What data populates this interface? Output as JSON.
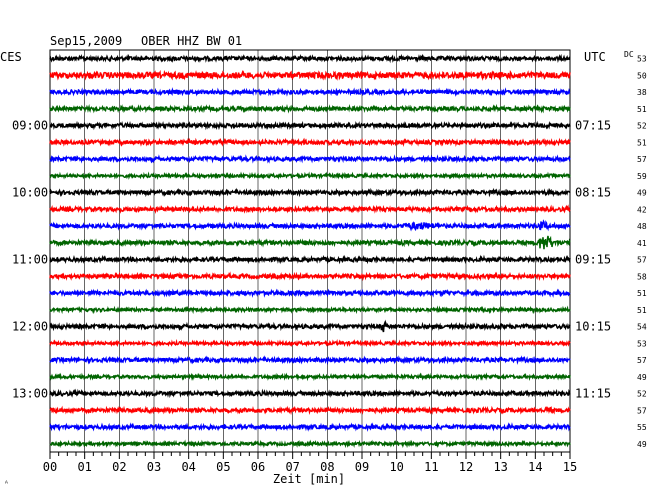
{
  "header": {
    "date": "Sep15,2009",
    "station": "OBER HHZ BW 01",
    "left_zone": "CES",
    "right_zone": "UTC",
    "dc_label": "DC",
    "corner_mark": "ᴬ"
  },
  "chart_data": {
    "type": "line",
    "title": "Sep15,2009 OBER HHZ BW 01",
    "xlabel": "Zeit [min]",
    "ylabel": "",
    "x_range": [
      0,
      15
    ],
    "x_ticks": [
      "00",
      "01",
      "02",
      "03",
      "04",
      "05",
      "06",
      "07",
      "08",
      "09",
      "10",
      "11",
      "12",
      "13",
      "14",
      "15"
    ],
    "grid": true,
    "rows": 24,
    "trace_colors": [
      "#000000",
      "#ff0000",
      "#0000ff",
      "#006400"
    ],
    "time_labels": [
      {
        "row": 0,
        "left": "",
        "right": ""
      },
      {
        "row": 4,
        "left": "09:00",
        "right": "07:15"
      },
      {
        "row": 8,
        "left": "10:00",
        "right": "08:15"
      },
      {
        "row": 12,
        "left": "11:00",
        "right": "09:15"
      },
      {
        "row": 16,
        "left": "12:00",
        "right": "10:15"
      },
      {
        "row": 20,
        "left": "13:00",
        "right": "11:15"
      }
    ],
    "dc_values": [
      "53",
      "50",
      "38",
      "51",
      "52",
      "51",
      "57",
      "59",
      "49",
      "42",
      "48",
      "41",
      "57",
      "58",
      "51",
      "51",
      "54",
      "53",
      "57",
      "49",
      "52",
      "57",
      "55",
      "49"
    ],
    "amplitude_levels": [
      2,
      3,
      2,
      2,
      2,
      2,
      2,
      1.5,
      2,
      2,
      2,
      2,
      2,
      2,
      2,
      1.5,
      2,
      1.5,
      2,
      1.5,
      2,
      2,
      2,
      1.5
    ],
    "events": [
      {
        "row": 10,
        "start_min": 9.9,
        "end_min": 12.5,
        "peak": 4
      },
      {
        "row": 10,
        "start_min": 14.0,
        "end_min": 14.8,
        "peak": 5
      },
      {
        "row": 11,
        "start_min": 7.0,
        "end_min": 8.5,
        "peak": 2.5
      },
      {
        "row": 11,
        "start_min": 14.0,
        "end_min": 15.0,
        "peak": 8
      },
      {
        "row": 1,
        "start_min": 6.1,
        "end_min": 6.8,
        "peak": 3
      },
      {
        "row": 1,
        "start_min": 8.1,
        "end_min": 8.6,
        "peak": 3
      },
      {
        "row": 14,
        "start_min": 11.2,
        "end_min": 11.8,
        "peak": 3
      },
      {
        "row": 16,
        "start_min": 9.5,
        "end_min": 9.9,
        "peak": 6
      },
      {
        "row": 21,
        "start_min": 14.2,
        "end_min": 14.9,
        "peak": 3
      }
    ]
  }
}
